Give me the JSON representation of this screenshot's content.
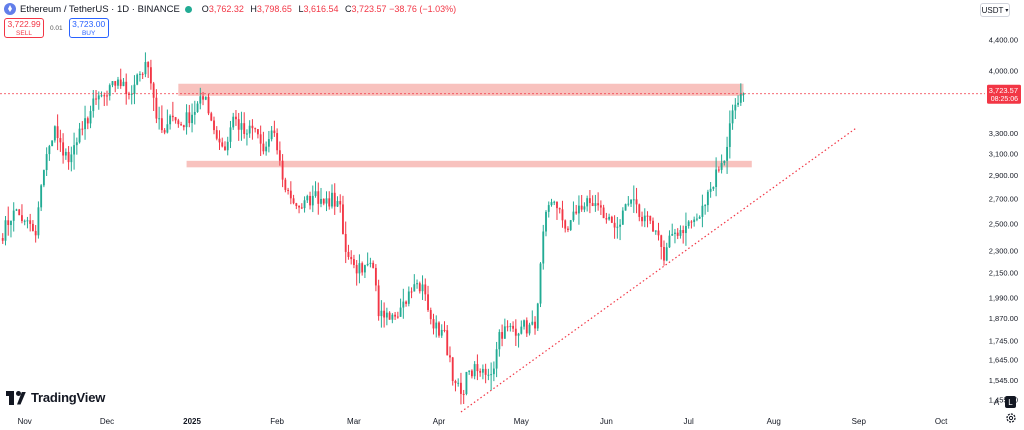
{
  "header": {
    "symbol": "Ethereum / TetherUS · 1D · BINANCE",
    "o_label": "O",
    "o_value": "3,762.32",
    "h_label": "H",
    "h_value": "3,798.65",
    "l_label": "L",
    "l_value": "3,616.54",
    "c_label": "C",
    "c_value": "3,723.57",
    "change": "−38.76 (−1.03%)",
    "status_color": "#22ab94"
  },
  "trade": {
    "sell_price": "3,722.99",
    "sell_label": "SELL",
    "spread": "0.01",
    "buy_price": "3,723.00",
    "buy_label": "BUY"
  },
  "currency": {
    "label": "USDT",
    "icon": "chevron-down-icon"
  },
  "logo": {
    "text": "TradingView"
  },
  "scale_buttons": {
    "auto": "A",
    "log": "L"
  },
  "chart_data": {
    "type": "candlestick",
    "yscale": "log",
    "ylim": [
      1400,
      4700
    ],
    "xlim": [
      "2024-10-23",
      "2025-10-17"
    ],
    "y_ticks": [
      4400,
      4000,
      3700,
      3300,
      3100,
      2900,
      2700,
      2500,
      2300,
      2150,
      1990,
      1870,
      1745,
      1645,
      1545,
      1455
    ],
    "y_tick_labels": [
      "4,400.00",
      "4,000.00",
      "3,700.00",
      "3,300.00",
      "3,100.00",
      "2,900.00",
      "2,700.00",
      "2,500.00",
      "2,300.00",
      "2,150.00",
      "1,990.00",
      "1,870.00",
      "1,745.00",
      "1,645.00",
      "1,545.00",
      "1,455.00"
    ],
    "x_ticks": [
      {
        "label": "Nov",
        "date": "2024-11-01",
        "bold": false
      },
      {
        "label": "Dec",
        "date": "2024-12-01",
        "bold": false
      },
      {
        "label": "2025",
        "date": "2025-01-01",
        "bold": true
      },
      {
        "label": "Feb",
        "date": "2025-02-01",
        "bold": false
      },
      {
        "label": "Mar",
        "date": "2025-03-01",
        "bold": false
      },
      {
        "label": "Apr",
        "date": "2025-04-01",
        "bold": false
      },
      {
        "label": "May",
        "date": "2025-05-01",
        "bold": false
      },
      {
        "label": "Jun",
        "date": "2025-06-01",
        "bold": false
      },
      {
        "label": "Jul",
        "date": "2025-07-01",
        "bold": false
      },
      {
        "label": "Aug",
        "date": "2025-08-01",
        "bold": false
      },
      {
        "label": "Sep",
        "date": "2025-09-01",
        "bold": false
      },
      {
        "label": "Oct",
        "date": "2025-10-01",
        "bold": false
      }
    ],
    "last_price": {
      "value": 3723.57,
      "label": "3,723.57",
      "countdown": "08:25:06",
      "color": "#f23645"
    },
    "resistance_zones": [
      {
        "from": "2024-12-27",
        "to": "2025-07-21",
        "low": 3700,
        "high": 3840,
        "color": "#f7b7b3"
      },
      {
        "from": "2024-12-30",
        "to": "2025-07-24",
        "low": 2970,
        "high": 3030,
        "color": "#f7b7b3"
      }
    ],
    "trendline": {
      "from": {
        "date": "2025-04-09",
        "price": 1400
      },
      "to": {
        "date": "2025-08-31",
        "price": 3350
      },
      "color": "#f23645",
      "style": "dotted"
    },
    "up_color": "#22ab94",
    "down_color": "#f23645",
    "anchors": [
      [
        "2024-10-23",
        2390
      ],
      [
        "2024-10-28",
        2600
      ],
      [
        "2024-11-01",
        2520
      ],
      [
        "2024-11-05",
        2410
      ],
      [
        "2024-11-07",
        2810
      ],
      [
        "2024-11-10",
        3170
      ],
      [
        "2024-11-12",
        3370
      ],
      [
        "2024-11-15",
        3080
      ],
      [
        "2024-11-18",
        3090
      ],
      [
        "2024-11-22",
        3340
      ],
      [
        "2024-11-27",
        3660
      ],
      [
        "2024-12-01",
        3700
      ],
      [
        "2024-12-05",
        3890
      ],
      [
        "2024-12-09",
        3710
      ],
      [
        "2024-12-12",
        3950
      ],
      [
        "2024-12-16",
        4040
      ],
      [
        "2024-12-19",
        3450
      ],
      [
        "2024-12-21",
        3330
      ],
      [
        "2024-12-24",
        3480
      ],
      [
        "2024-12-28",
        3380
      ],
      [
        "2025-01-06",
        3690
      ],
      [
        "2025-01-09",
        3330
      ],
      [
        "2025-01-13",
        3130
      ],
      [
        "2025-01-16",
        3470
      ],
      [
        "2025-01-20",
        3290
      ],
      [
        "2025-01-24",
        3340
      ],
      [
        "2025-01-27",
        3120
      ],
      [
        "2025-01-31",
        3300
      ],
      [
        "2025-02-03",
        2860
      ],
      [
        "2025-02-06",
        2700
      ],
      [
        "2025-02-10",
        2620
      ],
      [
        "2025-02-14",
        2720
      ],
      [
        "2025-02-19",
        2700
      ],
      [
        "2025-02-24",
        2650
      ],
      [
        "2025-02-26",
        2290
      ],
      [
        "2025-03-01",
        2200
      ],
      [
        "2025-03-04",
        2150
      ],
      [
        "2025-03-08",
        2180
      ],
      [
        "2025-03-10",
        1880
      ],
      [
        "2025-03-13",
        1900
      ],
      [
        "2025-03-18",
        1930
      ],
      [
        "2025-03-24",
        2080
      ],
      [
        "2025-03-27",
        2010
      ],
      [
        "2025-03-30",
        1810
      ],
      [
        "2025-04-03",
        1800
      ],
      [
        "2025-04-06",
        1540
      ],
      [
        "2025-04-09",
        1480
      ],
      [
        "2025-04-12",
        1590
      ],
      [
        "2025-04-16",
        1580
      ],
      [
        "2025-04-21",
        1600
      ],
      [
        "2025-04-23",
        1790
      ],
      [
        "2025-05-01",
        1820
      ],
      [
        "2025-05-06",
        1810
      ],
      [
        "2025-05-08",
        2210
      ],
      [
        "2025-05-10",
        2590
      ],
      [
        "2025-05-14",
        2620
      ],
      [
        "2025-05-18",
        2450
      ],
      [
        "2025-05-22",
        2640
      ],
      [
        "2025-05-28",
        2660
      ],
      [
        "2025-06-01",
        2530
      ],
      [
        "2025-06-06",
        2490
      ],
      [
        "2025-06-10",
        2690
      ],
      [
        "2025-06-13",
        2550
      ],
      [
        "2025-06-15",
        2560
      ],
      [
        "2025-06-17",
        2520
      ],
      [
        "2025-06-20",
        2410
      ],
      [
        "2025-06-22",
        2230
      ],
      [
        "2025-06-25",
        2420
      ],
      [
        "2025-06-30",
        2480
      ],
      [
        "2025-07-05",
        2550
      ],
      [
        "2025-07-09",
        2780
      ],
      [
        "2025-07-11",
        2950
      ],
      [
        "2025-07-14",
        3030
      ],
      [
        "2025-07-16",
        3400
      ],
      [
        "2025-07-18",
        3600
      ],
      [
        "2025-07-20",
        3720
      ],
      [
        "2025-07-21",
        3723.57
      ]
    ]
  }
}
